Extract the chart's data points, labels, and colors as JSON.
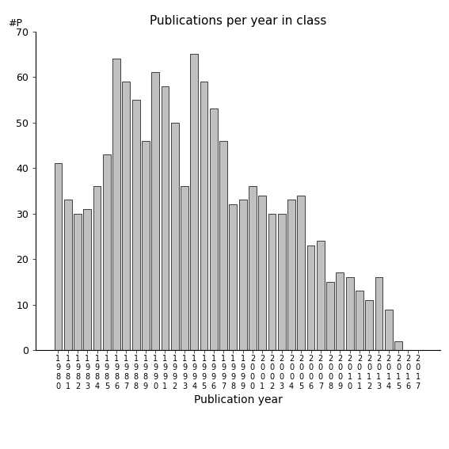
{
  "title": "Publications per year in class",
  "xlabel": "Publication year",
  "ylabel": "#P",
  "years": [
    "1980",
    "1981",
    "1982",
    "1983",
    "1984",
    "1985",
    "1986",
    "1987",
    "1988",
    "1989",
    "1990",
    "1991",
    "1992",
    "1993",
    "1994",
    "1995",
    "1996",
    "1997",
    "1998",
    "1999",
    "2000",
    "2001",
    "2002",
    "2003",
    "2004",
    "2005",
    "2006",
    "2007",
    "2008",
    "2009",
    "2010",
    "2011",
    "2012",
    "2013",
    "2014",
    "2015",
    "2016",
    "2017"
  ],
  "values": [
    41,
    33,
    30,
    31,
    36,
    43,
    64,
    59,
    55,
    46,
    61,
    58,
    50,
    36,
    65,
    59,
    53,
    46,
    32,
    33,
    36,
    34,
    30,
    30,
    33,
    34,
    23,
    24,
    15,
    17,
    16,
    13,
    11,
    16,
    9,
    2,
    0,
    0
  ],
  "bar_color": "#c0c0c0",
  "bar_edgecolor": "#000000",
  "ylim": [
    0,
    70
  ],
  "yticks": [
    0,
    10,
    20,
    30,
    40,
    50,
    60,
    70
  ],
  "background_color": "#ffffff",
  "title_fontsize": 11,
  "xlabel_fontsize": 10,
  "tick_label_fontsize": 9,
  "bar_linewidth": 0.5,
  "bar_width": 0.8
}
